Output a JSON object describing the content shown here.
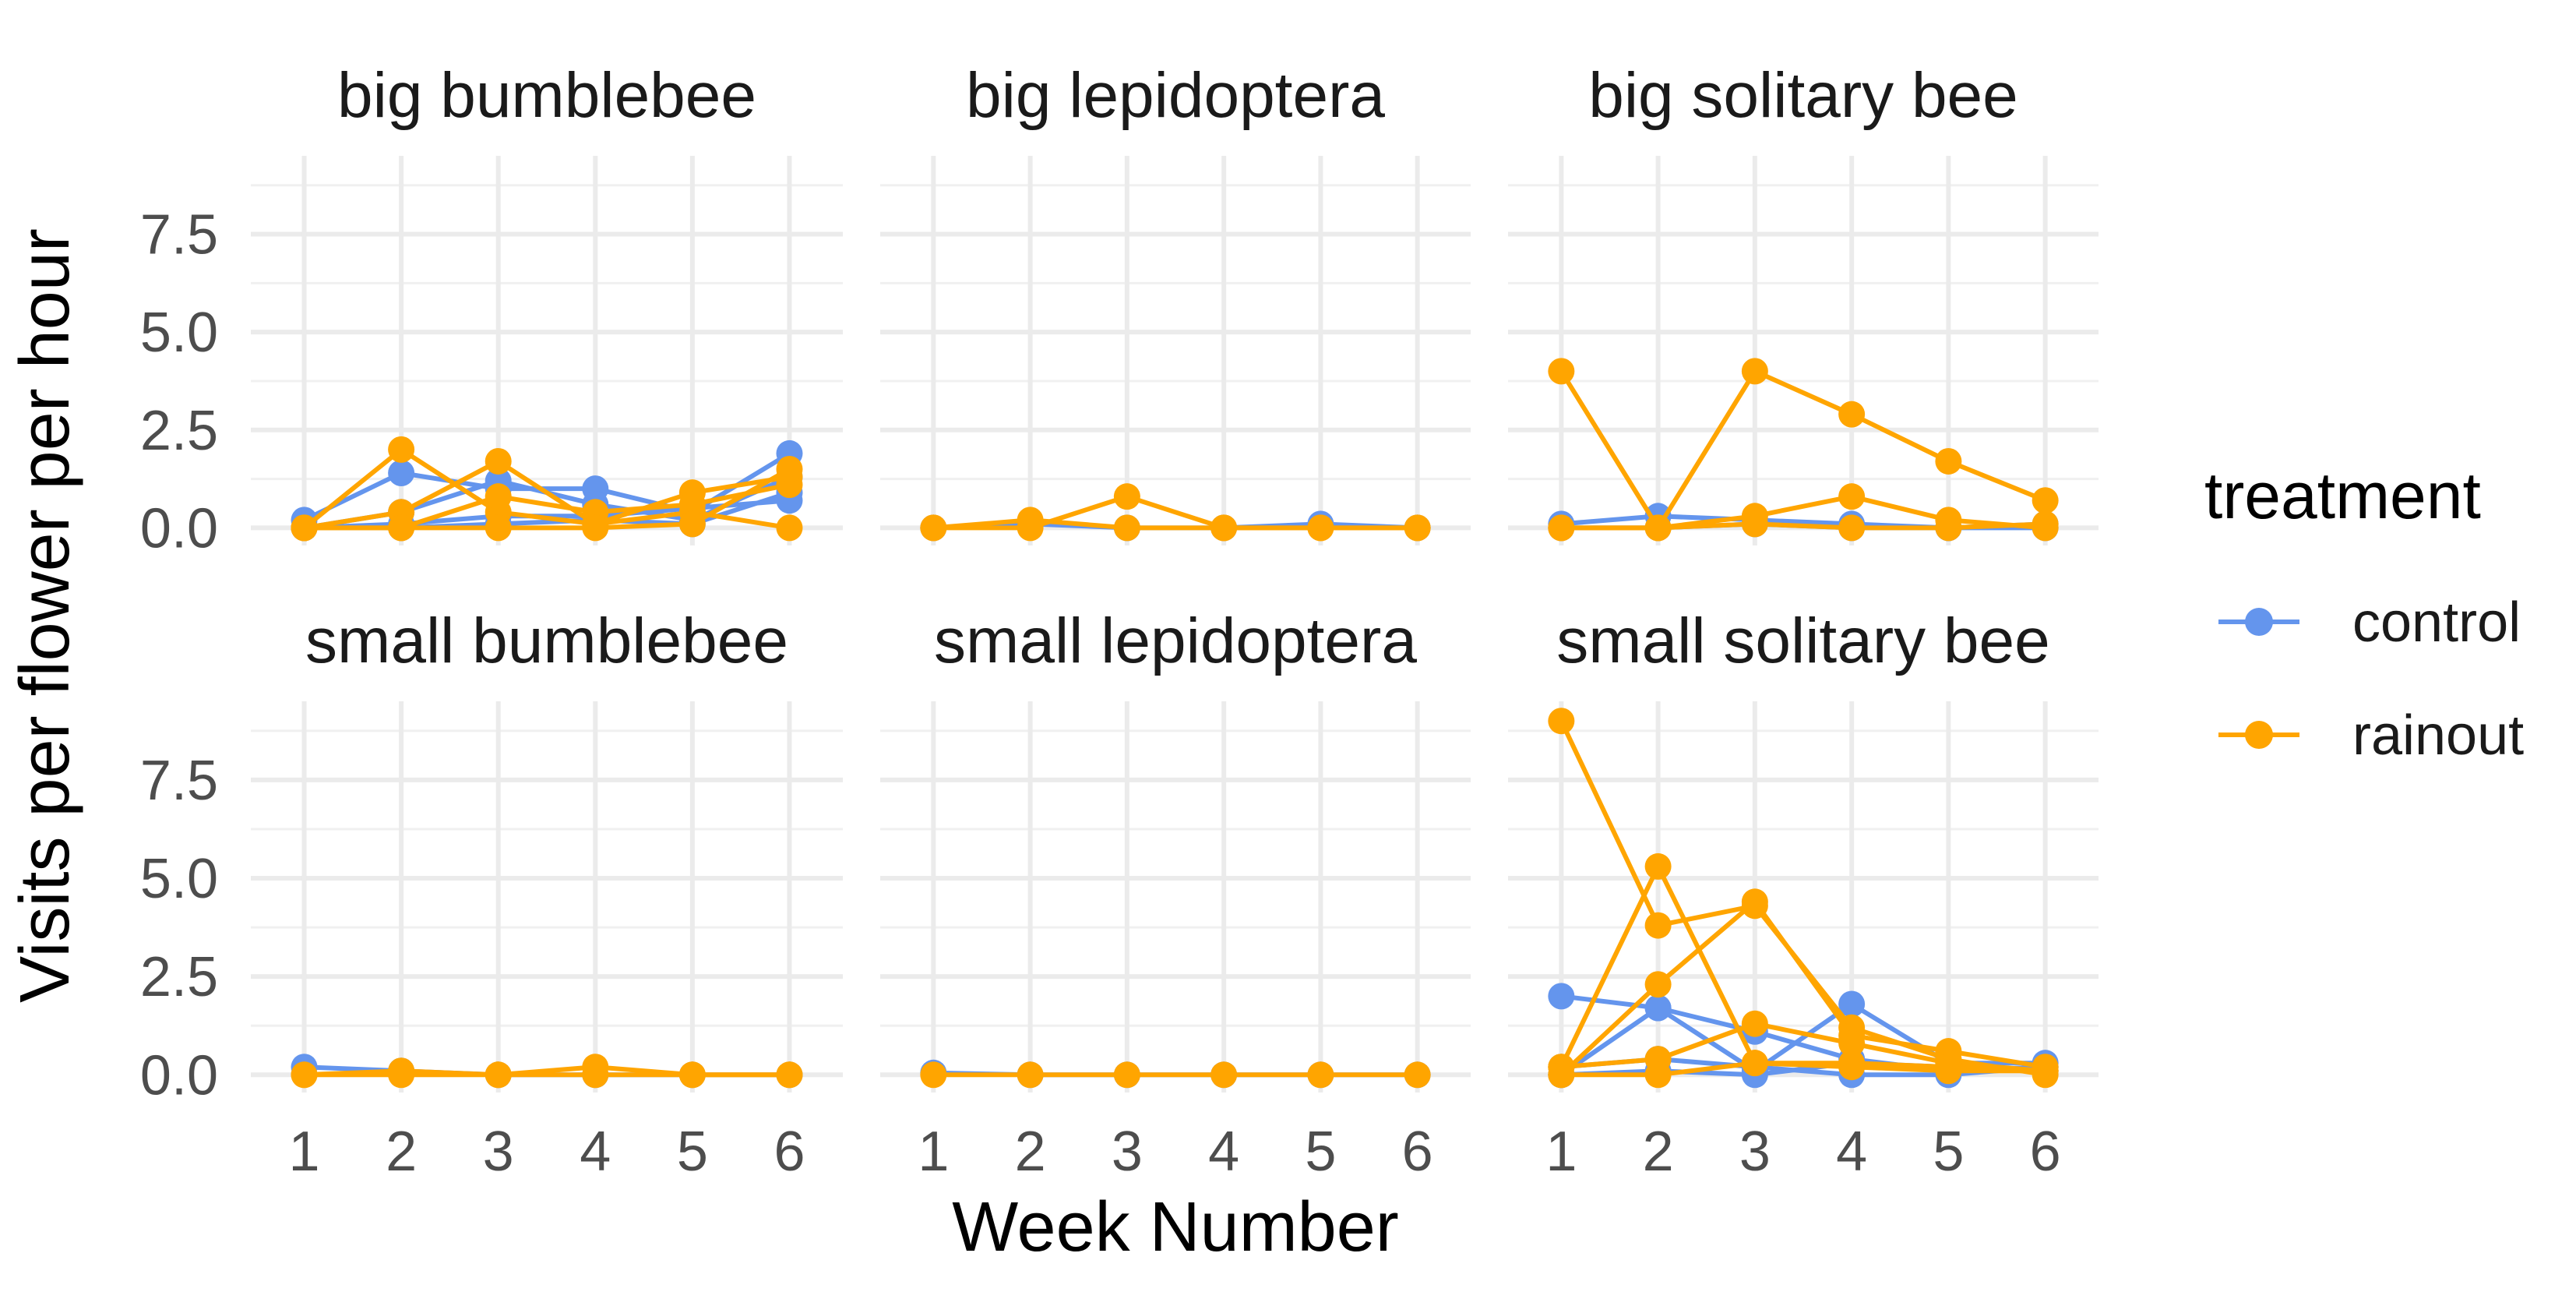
{
  "chart_data": {
    "type": "line",
    "xlabel": "Week Number",
    "ylabel": "Visits per flower per hour",
    "x_ticks": [
      1,
      2,
      3,
      4,
      5,
      6
    ],
    "y_ticks": [
      "0.0",
      "2.5",
      "5.0",
      "7.5"
    ],
    "xlim": [
      0.45,
      6.55
    ],
    "ylim": [
      -0.45,
      9.5
    ],
    "grid": true,
    "legend": {
      "title": "treatment",
      "position": "right",
      "entries": [
        {
          "name": "control",
          "color": "#6495ED"
        },
        {
          "name": "rainout",
          "color": "#FFA500"
        }
      ]
    },
    "panels": [
      {
        "title": "big bumblebee",
        "series": [
          {
            "treatment": "control",
            "x": [
              1,
              2,
              3,
              4,
              5,
              6
            ],
            "y": [
              0.2,
              1.4,
              1.0,
              1.0,
              0.4,
              1.9
            ]
          },
          {
            "treatment": "control",
            "x": [
              1,
              2,
              3,
              4,
              5,
              6
            ],
            "y": [
              0.0,
              0.4,
              1.2,
              0.6,
              0.2,
              1.3
            ]
          },
          {
            "treatment": "control",
            "x": [
              1,
              2,
              3,
              4,
              5,
              6
            ],
            "y": [
              0.0,
              0.1,
              0.3,
              0.3,
              0.5,
              0.7
            ]
          },
          {
            "treatment": "control",
            "x": [
              1,
              2,
              3,
              4,
              5,
              6
            ],
            "y": [
              0.0,
              0.0,
              0.1,
              0.2,
              0.1,
              0.9
            ]
          },
          {
            "treatment": "rainout",
            "x": [
              1,
              2,
              3,
              4,
              5,
              6
            ],
            "y": [
              0.0,
              2.0,
              0.4,
              0.1,
              0.9,
              1.3
            ]
          },
          {
            "treatment": "rainout",
            "x": [
              1,
              2,
              3,
              4,
              5,
              6
            ],
            "y": [
              0.0,
              0.4,
              1.7,
              0.1,
              0.4,
              0.0
            ]
          },
          {
            "treatment": "rainout",
            "x": [
              1,
              2,
              3,
              4,
              5,
              6
            ],
            "y": [
              0.0,
              0.0,
              0.8,
              0.4,
              0.6,
              1.1
            ]
          },
          {
            "treatment": "rainout",
            "x": [
              1,
              2,
              3,
              4,
              5,
              6
            ],
            "y": [
              0.0,
              0.0,
              0.0,
              0.0,
              0.1,
              1.5
            ]
          }
        ]
      },
      {
        "title": "big lepidoptera",
        "series": [
          {
            "treatment": "control",
            "x": [
              1,
              2,
              3,
              4,
              5,
              6
            ],
            "y": [
              0.0,
              0.1,
              0.0,
              0.0,
              0.1,
              0.0
            ]
          },
          {
            "treatment": "rainout",
            "x": [
              1,
              2,
              3,
              4,
              5,
              6
            ],
            "y": [
              0.0,
              0.2,
              0.0,
              0.0,
              0.0,
              0.0
            ]
          },
          {
            "treatment": "rainout",
            "x": [
              1,
              2,
              3,
              4,
              5,
              6
            ],
            "y": [
              0.0,
              0.0,
              0.8,
              0.0,
              0.0,
              0.0
            ]
          }
        ]
      },
      {
        "title": "big solitary bee",
        "series": [
          {
            "treatment": "control",
            "x": [
              1,
              2,
              3,
              4,
              5,
              6
            ],
            "y": [
              0.1,
              0.3,
              0.2,
              0.1,
              0.0,
              0.0
            ]
          },
          {
            "treatment": "control",
            "x": [
              1,
              2,
              3,
              4,
              5,
              6
            ],
            "y": [
              0.0,
              0.0,
              0.1,
              0.0,
              0.0,
              0.1
            ]
          },
          {
            "treatment": "rainout",
            "x": [
              1,
              2,
              3,
              4,
              5,
              6
            ],
            "y": [
              4.0,
              0.0,
              0.3,
              0.8,
              0.2,
              0.0
            ]
          },
          {
            "treatment": "rainout",
            "x": [
              1,
              2,
              3,
              4,
              5,
              6
            ],
            "y": [
              0.0,
              0.0,
              4.0,
              2.9,
              1.7,
              0.7
            ]
          },
          {
            "treatment": "rainout",
            "x": [
              1,
              2,
              3,
              4,
              5,
              6
            ],
            "y": [
              0.0,
              0.0,
              0.1,
              0.0,
              0.0,
              0.1
            ]
          }
        ]
      },
      {
        "title": "small bumblebee",
        "series": [
          {
            "treatment": "control",
            "x": [
              1,
              2,
              3,
              4,
              5,
              6
            ],
            "y": [
              0.2,
              0.1,
              0.0,
              0.0,
              0.0,
              0.0
            ]
          },
          {
            "treatment": "rainout",
            "x": [
              1,
              2,
              3,
              4,
              5,
              6
            ],
            "y": [
              0.0,
              0.1,
              0.0,
              0.2,
              0.0,
              0.0
            ]
          },
          {
            "treatment": "rainout",
            "x": [
              1,
              2,
              3,
              4,
              5,
              6
            ],
            "y": [
              0.0,
              0.0,
              0.0,
              0.0,
              0.0,
              0.0
            ]
          }
        ]
      },
      {
        "title": "small lepidoptera",
        "series": [
          {
            "treatment": "control",
            "x": [
              1,
              2,
              3,
              4,
              5,
              6
            ],
            "y": [
              0.05,
              0.0,
              0.0,
              0.0,
              0.0,
              0.0
            ]
          },
          {
            "treatment": "rainout",
            "x": [
              1,
              2,
              3,
              4,
              5,
              6
            ],
            "y": [
              0.0,
              0.0,
              0.0,
              0.0,
              0.0,
              0.0
            ]
          }
        ]
      },
      {
        "title": "small solitary bee",
        "series": [
          {
            "treatment": "control",
            "x": [
              1,
              2,
              3,
              4,
              5,
              6
            ],
            "y": [
              2.0,
              1.7,
              1.1,
              0.4,
              0.1,
              0.2
            ]
          },
          {
            "treatment": "control",
            "x": [
              1,
              2,
              3,
              4,
              5,
              6
            ],
            "y": [
              0.0,
              1.7,
              0.1,
              1.8,
              0.3,
              0.3
            ]
          },
          {
            "treatment": "control",
            "x": [
              1,
              2,
              3,
              4,
              5,
              6
            ],
            "y": [
              0.2,
              0.4,
              0.2,
              0.0,
              0.0,
              0.2
            ]
          },
          {
            "treatment": "control",
            "x": [
              1,
              2,
              3,
              4,
              5,
              6
            ],
            "y": [
              0.0,
              0.1,
              0.0,
              0.3,
              0.2,
              0.1
            ]
          },
          {
            "treatment": "rainout",
            "x": [
              1,
              2,
              3,
              4,
              5,
              6
            ],
            "y": [
              9.0,
              3.8,
              4.3,
              1.2,
              0.4,
              0.0
            ]
          },
          {
            "treatment": "rainout",
            "x": [
              1,
              2,
              3,
              4,
              5,
              6
            ],
            "y": [
              0.2,
              5.3,
              0.3,
              0.2,
              0.1,
              0.1
            ]
          },
          {
            "treatment": "rainout",
            "x": [
              1,
              2,
              3,
              4,
              5,
              6
            ],
            "y": [
              0.0,
              2.3,
              4.4,
              1.0,
              0.6,
              0.2
            ]
          },
          {
            "treatment": "rainout",
            "x": [
              1,
              2,
              3,
              4,
              5,
              6
            ],
            "y": [
              0.2,
              0.4,
              1.3,
              0.8,
              0.3,
              0.1
            ]
          },
          {
            "treatment": "rainout",
            "x": [
              1,
              2,
              3,
              4,
              5,
              6
            ],
            "y": [
              0.0,
              0.0,
              0.3,
              0.3,
              0.2,
              0.1
            ]
          }
        ]
      }
    ]
  }
}
